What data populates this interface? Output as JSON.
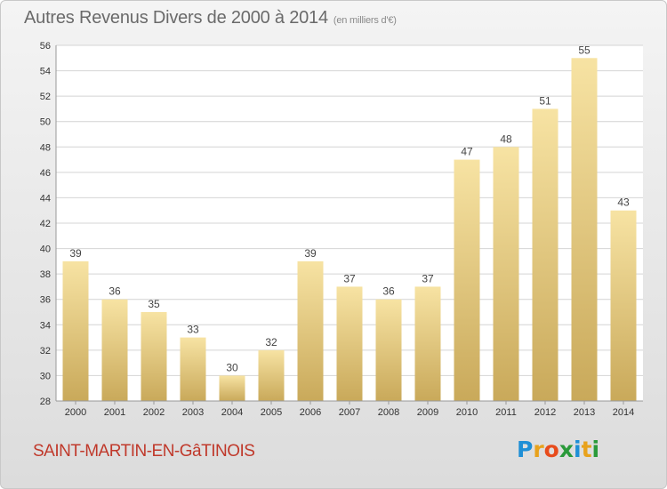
{
  "title": "Autres Revenus Divers de 2000 à 2014",
  "unit_note": "(en milliers d'€)",
  "commune": "SAINT-MARTIN-EN-GâTINOIS",
  "logo": {
    "letters": [
      "P",
      "r",
      "o",
      "x",
      "i",
      "t",
      "i"
    ],
    "colors": [
      "#1f8fd6",
      "#e8a21c",
      "#e84c1c",
      "#2a9a3a",
      "#1f8fd6",
      "#e8a21c",
      "#2a9a3a"
    ]
  },
  "colors": {
    "bar_light": "#f7e3a3",
    "bar_dark": "#c9a95a",
    "grid": "#d4d4d4",
    "title": "#6a6a6a",
    "commune": "#c0392b"
  },
  "chart_data": {
    "type": "bar",
    "title": "Autres Revenus Divers de 2000 à 2014",
    "subtitle": "(en milliers d'€)",
    "categories": [
      "2000",
      "2001",
      "2002",
      "2003",
      "2004",
      "2005",
      "2006",
      "2007",
      "2008",
      "2009",
      "2010",
      "2011",
      "2012",
      "2013",
      "2014"
    ],
    "values": [
      39,
      36,
      35,
      33,
      30,
      32,
      39,
      37,
      36,
      37,
      47,
      48,
      51,
      55,
      43
    ],
    "xlabel": "",
    "ylabel": "",
    "ylim": [
      28,
      56
    ],
    "yticks": [
      "28",
      "30",
      "32",
      "34",
      "36",
      "38",
      "40",
      "42",
      "44",
      "46",
      "48",
      "50",
      "52",
      "54",
      "56"
    ],
    "grid": true,
    "legend": "none"
  }
}
